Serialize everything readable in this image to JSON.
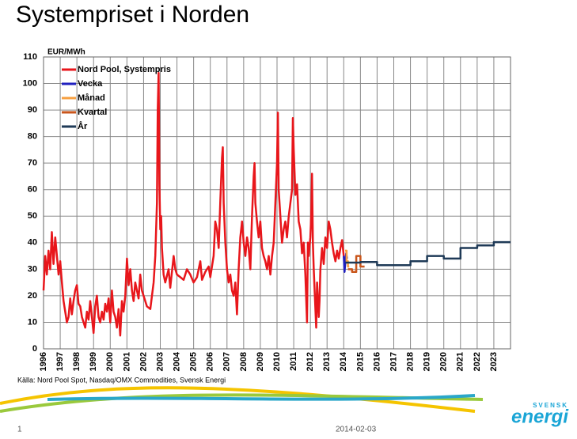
{
  "chart_data": {
    "type": "line",
    "title": "Systempriset i Norden",
    "y_label": "EUR/MWh",
    "source": "Källa: Nord Pool Spot, Nasdaq/OMX Commodities, Svensk Energi",
    "xlim": [
      1996,
      2024
    ],
    "xticks": [
      1996,
      1997,
      1998,
      1999,
      2000,
      2001,
      2002,
      2003,
      2004,
      2005,
      2006,
      2007,
      2008,
      2009,
      2010,
      2011,
      2012,
      2013,
      2014,
      2015,
      2016,
      2017,
      2018,
      2019,
      2020,
      2021,
      2022,
      2023
    ],
    "ylim": [
      0,
      110
    ],
    "yticks": [
      0,
      10,
      20,
      30,
      40,
      50,
      60,
      70,
      80,
      90,
      100,
      110
    ],
    "grid": true,
    "legend": "top-left",
    "series": [
      {
        "name": "Nord Pool, Systempris",
        "color": "#e8161b",
        "x": [
          1996.0,
          1996.1,
          1996.2,
          1996.3,
          1996.4,
          1996.5,
          1996.6,
          1996.7,
          1996.8,
          1996.9,
          1997.0,
          1997.1,
          1997.2,
          1997.3,
          1997.4,
          1997.5,
          1997.6,
          1997.7,
          1997.8,
          1997.9,
          1998.0,
          1998.1,
          1998.2,
          1998.3,
          1998.4,
          1998.5,
          1998.6,
          1998.7,
          1998.8,
          1998.9,
          1999.0,
          1999.1,
          1999.2,
          1999.3,
          1999.4,
          1999.5,
          1999.6,
          1999.7,
          1999.8,
          1999.9,
          2000.0,
          2000.1,
          2000.2,
          2000.3,
          2000.4,
          2000.5,
          2000.6,
          2000.7,
          2000.8,
          2000.9,
          2001.0,
          2001.1,
          2001.2,
          2001.3,
          2001.4,
          2001.5,
          2001.6,
          2001.7,
          2001.8,
          2001.9,
          2002.0,
          2002.2,
          2002.4,
          2002.6,
          2002.7,
          2002.8,
          2002.85,
          2002.9,
          2002.95,
          2003.0,
          2003.05,
          2003.1,
          2003.2,
          2003.3,
          2003.5,
          2003.6,
          2003.8,
          2003.9,
          2004.0,
          2004.2,
          2004.4,
          2004.6,
          2004.8,
          2005.0,
          2005.2,
          2005.4,
          2005.5,
          2005.7,
          2005.9,
          2006.0,
          2006.2,
          2006.3,
          2006.4,
          2006.5,
          2006.6,
          2006.7,
          2006.75,
          2006.8,
          2006.9,
          2007.0,
          2007.1,
          2007.2,
          2007.3,
          2007.4,
          2007.5,
          2007.6,
          2007.7,
          2007.8,
          2007.9,
          2008.0,
          2008.1,
          2008.2,
          2008.3,
          2008.4,
          2008.5,
          2008.6,
          2008.65,
          2008.7,
          2008.8,
          2008.9,
          2009.0,
          2009.1,
          2009.2,
          2009.3,
          2009.4,
          2009.5,
          2009.6,
          2009.7,
          2009.8,
          2009.9,
          2010.0,
          2010.05,
          2010.1,
          2010.2,
          2010.3,
          2010.4,
          2010.5,
          2010.6,
          2010.7,
          2010.8,
          2010.9,
          2010.95,
          2011.0,
          2011.1,
          2011.2,
          2011.3,
          2011.4,
          2011.5,
          2011.6,
          2011.7,
          2011.8,
          2011.85,
          2011.9,
          2012.0,
          2012.05,
          2012.1,
          2012.15,
          2012.2,
          2012.3,
          2012.35,
          2012.4,
          2012.5,
          2012.55,
          2012.6,
          2012.7,
          2012.8,
          2012.9,
          2013.0,
          2013.1,
          2013.2,
          2013.3,
          2013.4,
          2013.5,
          2013.6,
          2013.7,
          2013.8,
          2013.9,
          2014.0,
          2014.05
        ],
        "values": [
          22,
          35,
          28,
          37,
          30,
          44,
          32,
          42,
          35,
          28,
          33,
          25,
          18,
          14,
          10,
          12,
          19,
          13,
          18,
          22,
          24,
          17,
          16,
          12,
          10,
          8,
          14,
          11,
          18,
          12,
          6,
          16,
          20,
          12,
          10,
          14,
          11,
          17,
          14,
          19,
          10,
          22,
          14,
          12,
          8,
          15,
          5,
          18,
          14,
          20,
          34,
          24,
          30,
          22,
          18,
          25,
          22,
          19,
          28,
          22,
          20,
          16,
          15,
          25,
          35,
          55,
          90,
          104,
          62,
          45,
          50,
          38,
          28,
          25,
          30,
          23,
          35,
          30,
          28,
          27,
          26,
          30,
          28,
          25,
          27,
          33,
          26,
          29,
          31,
          27,
          35,
          48,
          45,
          38,
          56,
          72,
          76,
          55,
          40,
          30,
          25,
          28,
          22,
          20,
          25,
          13,
          30,
          42,
          48,
          40,
          35,
          42,
          38,
          30,
          50,
          65,
          70,
          55,
          48,
          42,
          48,
          38,
          35,
          33,
          30,
          35,
          28,
          35,
          40,
          55,
          70,
          89,
          60,
          50,
          40,
          45,
          48,
          42,
          50,
          55,
          60,
          87,
          75,
          58,
          62,
          48,
          45,
          36,
          40,
          28,
          10,
          40,
          35,
          42,
          50,
          66,
          40,
          30,
          15,
          8,
          25,
          12,
          18,
          30,
          38,
          32,
          42,
          38,
          48,
          45,
          40,
          36,
          33,
          37,
          34,
          38,
          41,
          35,
          32
        ]
      },
      {
        "name": "Vecka",
        "color": "#1f1fbf",
        "x": [
          2014.0,
          2014.05,
          2014.1,
          2014.15,
          2014.2
        ],
        "values": [
          35,
          29,
          33,
          36,
          34
        ]
      },
      {
        "name": "Månad",
        "color": "#f7a040",
        "x": [
          2014.08,
          2014.17,
          2014.17,
          2014.25,
          2014.25,
          2014.33
        ],
        "values": [
          37,
          37,
          33,
          33,
          31,
          31
        ]
      },
      {
        "name": "Kvartal",
        "color": "#c9561c",
        "x": [
          2014.25,
          2014.5,
          2014.5,
          2014.75,
          2014.75,
          2015.0,
          2015.0,
          2015.25
        ],
        "values": [
          30,
          30,
          29,
          29,
          35,
          35,
          31,
          31
        ]
      },
      {
        "name": "År",
        "color": "#1f3a57",
        "x": [
          2014.1,
          2015.0,
          2015.0,
          2016.0,
          2016.0,
          2018.0,
          2018.0,
          2019.0,
          2019.0,
          2020.0,
          2020.0,
          2021.0,
          2021.0,
          2022.0,
          2022.0,
          2023.0,
          2023.0,
          2024.0
        ],
        "values": [
          32.5,
          32.5,
          32.7,
          32.7,
          31.5,
          31.5,
          33,
          33,
          35,
          35,
          34,
          34,
          38,
          38,
          39,
          39,
          40.2,
          40.2
        ]
      }
    ]
  },
  "logo": {
    "top": "SVENSK",
    "main": "energi"
  },
  "footer": {
    "slide_number": "1",
    "date": "2014-02-03"
  }
}
